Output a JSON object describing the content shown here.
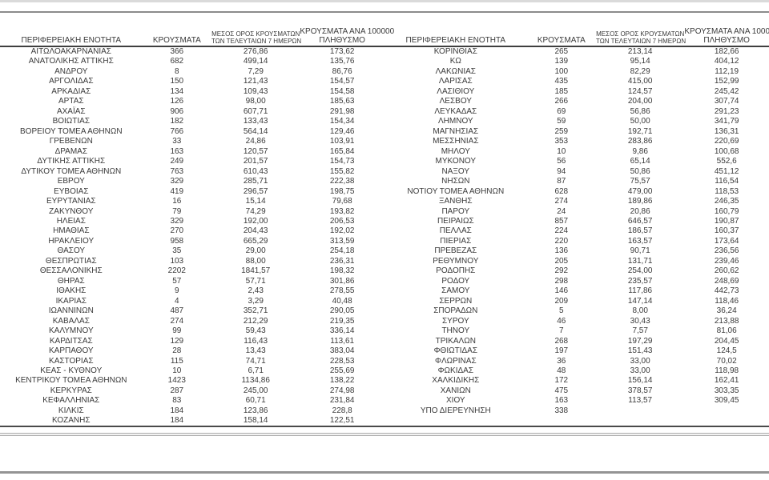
{
  "chart_data": {
    "type": "table",
    "columns": [
      "ΠΕΡΙΦΕΡΕΙΑΚΗ ΕΝΟΤΗΤΑ",
      "ΚΡΟΥΣΜΑΤΑ",
      "ΜΕΣΟΣ ΟΡΟΣ ΚΡΟΥΣΜΑΤΩΝ ΤΩΝ ΤΕΛΕΥΤΑΙΩΝ 7 ΗΜΕΡΩΝ",
      "ΚΡΟΥΣΜΑΤΑ ΑΝΑ 100000 ΠΛΗΘΥΣΜΟ"
    ],
    "headers": {
      "region": "ΠΕΡΙΦΕΡΕΙΑΚΗ ΕΝΟΤΗΤΑ",
      "cases": "ΚΡΟΥΣΜΑΤΑ",
      "avg7_line1": "ΜΕΣΟΣ ΟΡΟΣ ΚΡΟΥΣΜΑΤΩΝ",
      "avg7_line2": "ΤΩΝ ΤΕΛΕΥΤΑΙΩΝ 7 ΗΜΕΡΩΝ",
      "per100k_line1": "ΚΡΟΥΣΜΑΤΑ ΑΝΑ 100000",
      "per100k_line2": "ΠΛΗΘΥΣΜΟ"
    },
    "left_rows": [
      [
        "ΑΙΤΩΛΟΑΚΑΡΝΑΝΙΑΣ",
        "366",
        "276,86",
        "173,62"
      ],
      [
        "ΑΝΑΤΟΛΙΚΗΣ ΑΤΤΙΚΗΣ",
        "682",
        "499,14",
        "135,76"
      ],
      [
        "ΑΝΔΡΟΥ",
        "8",
        "7,29",
        "86,76"
      ],
      [
        "ΑΡΓΟΛΙΔΑΣ",
        "150",
        "121,43",
        "154,57"
      ],
      [
        "ΑΡΚΑΔΙΑΣ",
        "134",
        "109,43",
        "154,58"
      ],
      [
        "ΑΡΤΑΣ",
        "126",
        "98,00",
        "185,63"
      ],
      [
        "ΑΧΑΪΑΣ",
        "906",
        "607,71",
        "291,98"
      ],
      [
        "ΒΟΙΩΤΙΑΣ",
        "182",
        "133,43",
        "154,34"
      ],
      [
        "ΒΟΡΕΙΟΥ ΤΟΜΕΑ ΑΘΗΝΩΝ",
        "766",
        "564,14",
        "129,46"
      ],
      [
        "ΓΡΕΒΕΝΩΝ",
        "33",
        "24,86",
        "103,91"
      ],
      [
        "ΔΡΑΜΑΣ",
        "163",
        "120,57",
        "165,84"
      ],
      [
        "ΔΥΤΙΚΗΣ ΑΤΤΙΚΗΣ",
        "249",
        "201,57",
        "154,73"
      ],
      [
        "ΔΥΤΙΚΟΥ ΤΟΜΕΑ ΑΘΗΝΩΝ",
        "763",
        "610,43",
        "155,82"
      ],
      [
        "ΕΒΡΟΥ",
        "329",
        "285,71",
        "222,38"
      ],
      [
        "ΕΥΒΟΙΑΣ",
        "419",
        "296,57",
        "198,75"
      ],
      [
        "ΕΥΡΥΤΑΝΙΑΣ",
        "16",
        "15,14",
        "79,68"
      ],
      [
        "ΖΑΚΥΝΘΟΥ",
        "79",
        "74,29",
        "193,82"
      ],
      [
        "ΗΛΕΙΑΣ",
        "329",
        "192,00",
        "206,53"
      ],
      [
        "ΗΜΑΘΙΑΣ",
        "270",
        "204,43",
        "192,02"
      ],
      [
        "ΗΡΑΚΛΕΙΟΥ",
        "958",
        "665,29",
        "313,59"
      ],
      [
        "ΘΑΣΟΥ",
        "35",
        "29,00",
        "254,18"
      ],
      [
        "ΘΕΣΠΡΩΤΙΑΣ",
        "103",
        "88,00",
        "236,31"
      ],
      [
        "ΘΕΣΣΑΛΟΝΙΚΗΣ",
        "2202",
        "1841,57",
        "198,32"
      ],
      [
        "ΘΗΡΑΣ",
        "57",
        "57,71",
        "301,86"
      ],
      [
        "ΙΘΑΚΗΣ",
        "9",
        "2,43",
        "278,55"
      ],
      [
        "ΙΚΑΡΙΑΣ",
        "4",
        "3,29",
        "40,48"
      ],
      [
        "ΙΩΑΝΝΙΝΩΝ",
        "487",
        "352,71",
        "290,05"
      ],
      [
        "ΚΑΒΑΛΑΣ",
        "274",
        "212,29",
        "219,35"
      ],
      [
        "ΚΑΛΥΜΝΟΥ",
        "99",
        "59,43",
        "336,14"
      ],
      [
        "ΚΑΡΔΙΤΣΑΣ",
        "129",
        "116,43",
        "113,61"
      ],
      [
        "ΚΑΡΠΑΘΟΥ",
        "28",
        "13,43",
        "383,04"
      ],
      [
        "ΚΑΣΤΟΡΙΑΣ",
        "115",
        "74,71",
        "228,53"
      ],
      [
        "ΚΕΑΣ - ΚΥΘΝΟΥ",
        "10",
        "6,71",
        "255,69"
      ],
      [
        "ΚΕΝΤΡΙΚΟΥ ΤΟΜΕΑ ΑΘΗΝΩΝ",
        "1423",
        "1134,86",
        "138,22"
      ],
      [
        "ΚΕΡΚΥΡΑΣ",
        "287",
        "245,00",
        "274,98"
      ],
      [
        "ΚΕΦΑΛΛΗΝΙΑΣ",
        "83",
        "60,71",
        "231,84"
      ],
      [
        "ΚΙΛΚΙΣ",
        "184",
        "123,86",
        "228,8"
      ],
      [
        "ΚΟΖΑΝΗΣ",
        "184",
        "158,14",
        "122,51"
      ]
    ],
    "right_rows": [
      [
        "ΚΟΡΙΝΘΙΑΣ",
        "265",
        "213,14",
        "182,66"
      ],
      [
        "ΚΩ",
        "139",
        "95,14",
        "404,12"
      ],
      [
        "ΛΑΚΩΝΙΑΣ",
        "100",
        "82,29",
        "112,19"
      ],
      [
        "ΛΑΡΙΣΑΣ",
        "435",
        "415,00",
        "152,99"
      ],
      [
        "ΛΑΣΙΘΙΟΥ",
        "185",
        "124,57",
        "245,42"
      ],
      [
        "ΛΕΣΒΟΥ",
        "266",
        "204,00",
        "307,74"
      ],
      [
        "ΛΕΥΚΑΔΑΣ",
        "69",
        "56,86",
        "291,23"
      ],
      [
        "ΛΗΜΝΟΥ",
        "59",
        "50,00",
        "341,79"
      ],
      [
        "ΜΑΓΝΗΣΙΑΣ",
        "259",
        "192,71",
        "136,31"
      ],
      [
        "ΜΕΣΣΗΝΙΑΣ",
        "353",
        "283,86",
        "220,69"
      ],
      [
        "ΜΗΛΟΥ",
        "10",
        "9,86",
        "100,68"
      ],
      [
        "ΜΥΚΟΝΟΥ",
        "56",
        "65,14",
        "552,6"
      ],
      [
        "ΝΑΞΟΥ",
        "94",
        "50,86",
        "451,12"
      ],
      [
        "ΝΗΣΩΝ",
        "87",
        "75,57",
        "116,54"
      ],
      [
        "ΝΟΤΙΟΥ ΤΟΜΕΑ ΑΘΗΝΩΝ",
        "628",
        "479,00",
        "118,53"
      ],
      [
        "ΞΑΝΘΗΣ",
        "274",
        "189,86",
        "246,35"
      ],
      [
        "ΠΑΡΟΥ",
        "24",
        "20,86",
        "160,79"
      ],
      [
        "ΠΕΙΡΑΙΩΣ",
        "857",
        "646,57",
        "190,87"
      ],
      [
        "ΠΕΛΛΑΣ",
        "224",
        "186,57",
        "160,37"
      ],
      [
        "ΠΙΕΡΙΑΣ",
        "220",
        "163,57",
        "173,64"
      ],
      [
        "ΠΡΕΒΕΖΑΣ",
        "136",
        "90,71",
        "236,56"
      ],
      [
        "ΡΕΘΥΜΝΟΥ",
        "205",
        "131,71",
        "239,46"
      ],
      [
        "ΡΟΔΟΠΗΣ",
        "292",
        "254,00",
        "260,62"
      ],
      [
        "ΡΟΔΟΥ",
        "298",
        "235,57",
        "248,69"
      ],
      [
        "ΣΑΜΟΥ",
        "146",
        "117,86",
        "442,73"
      ],
      [
        "ΣΕΡΡΩΝ",
        "209",
        "147,14",
        "118,46"
      ],
      [
        "ΣΠΟΡΑΔΩΝ",
        "5",
        "8,00",
        "36,24"
      ],
      [
        "ΣΥΡΟΥ",
        "46",
        "30,43",
        "213,88"
      ],
      [
        "ΤΗΝΟΥ",
        "7",
        "7,57",
        "81,06"
      ],
      [
        "ΤΡΙΚΑΛΩΝ",
        "268",
        "197,29",
        "204,45"
      ],
      [
        "ΦΘΙΩΤΙΔΑΣ",
        "197",
        "151,43",
        "124,5"
      ],
      [
        "ΦΛΩΡΙΝΑΣ",
        "36",
        "33,00",
        "70,02"
      ],
      [
        "ΦΩΚΙΔΑΣ",
        "48",
        "33,00",
        "118,98"
      ],
      [
        "ΧΑΛΚΙΔΙΚΗΣ",
        "172",
        "156,14",
        "162,41"
      ],
      [
        "ΧΑΝΙΩΝ",
        "475",
        "378,57",
        "303,35"
      ],
      [
        "ΧΙΟΥ",
        "163",
        "113,57",
        "309,45"
      ],
      [
        "ΥΠΟ ΔΙΕΡΕΥΝΗΣΗ",
        "338",
        "",
        ""
      ]
    ]
  }
}
